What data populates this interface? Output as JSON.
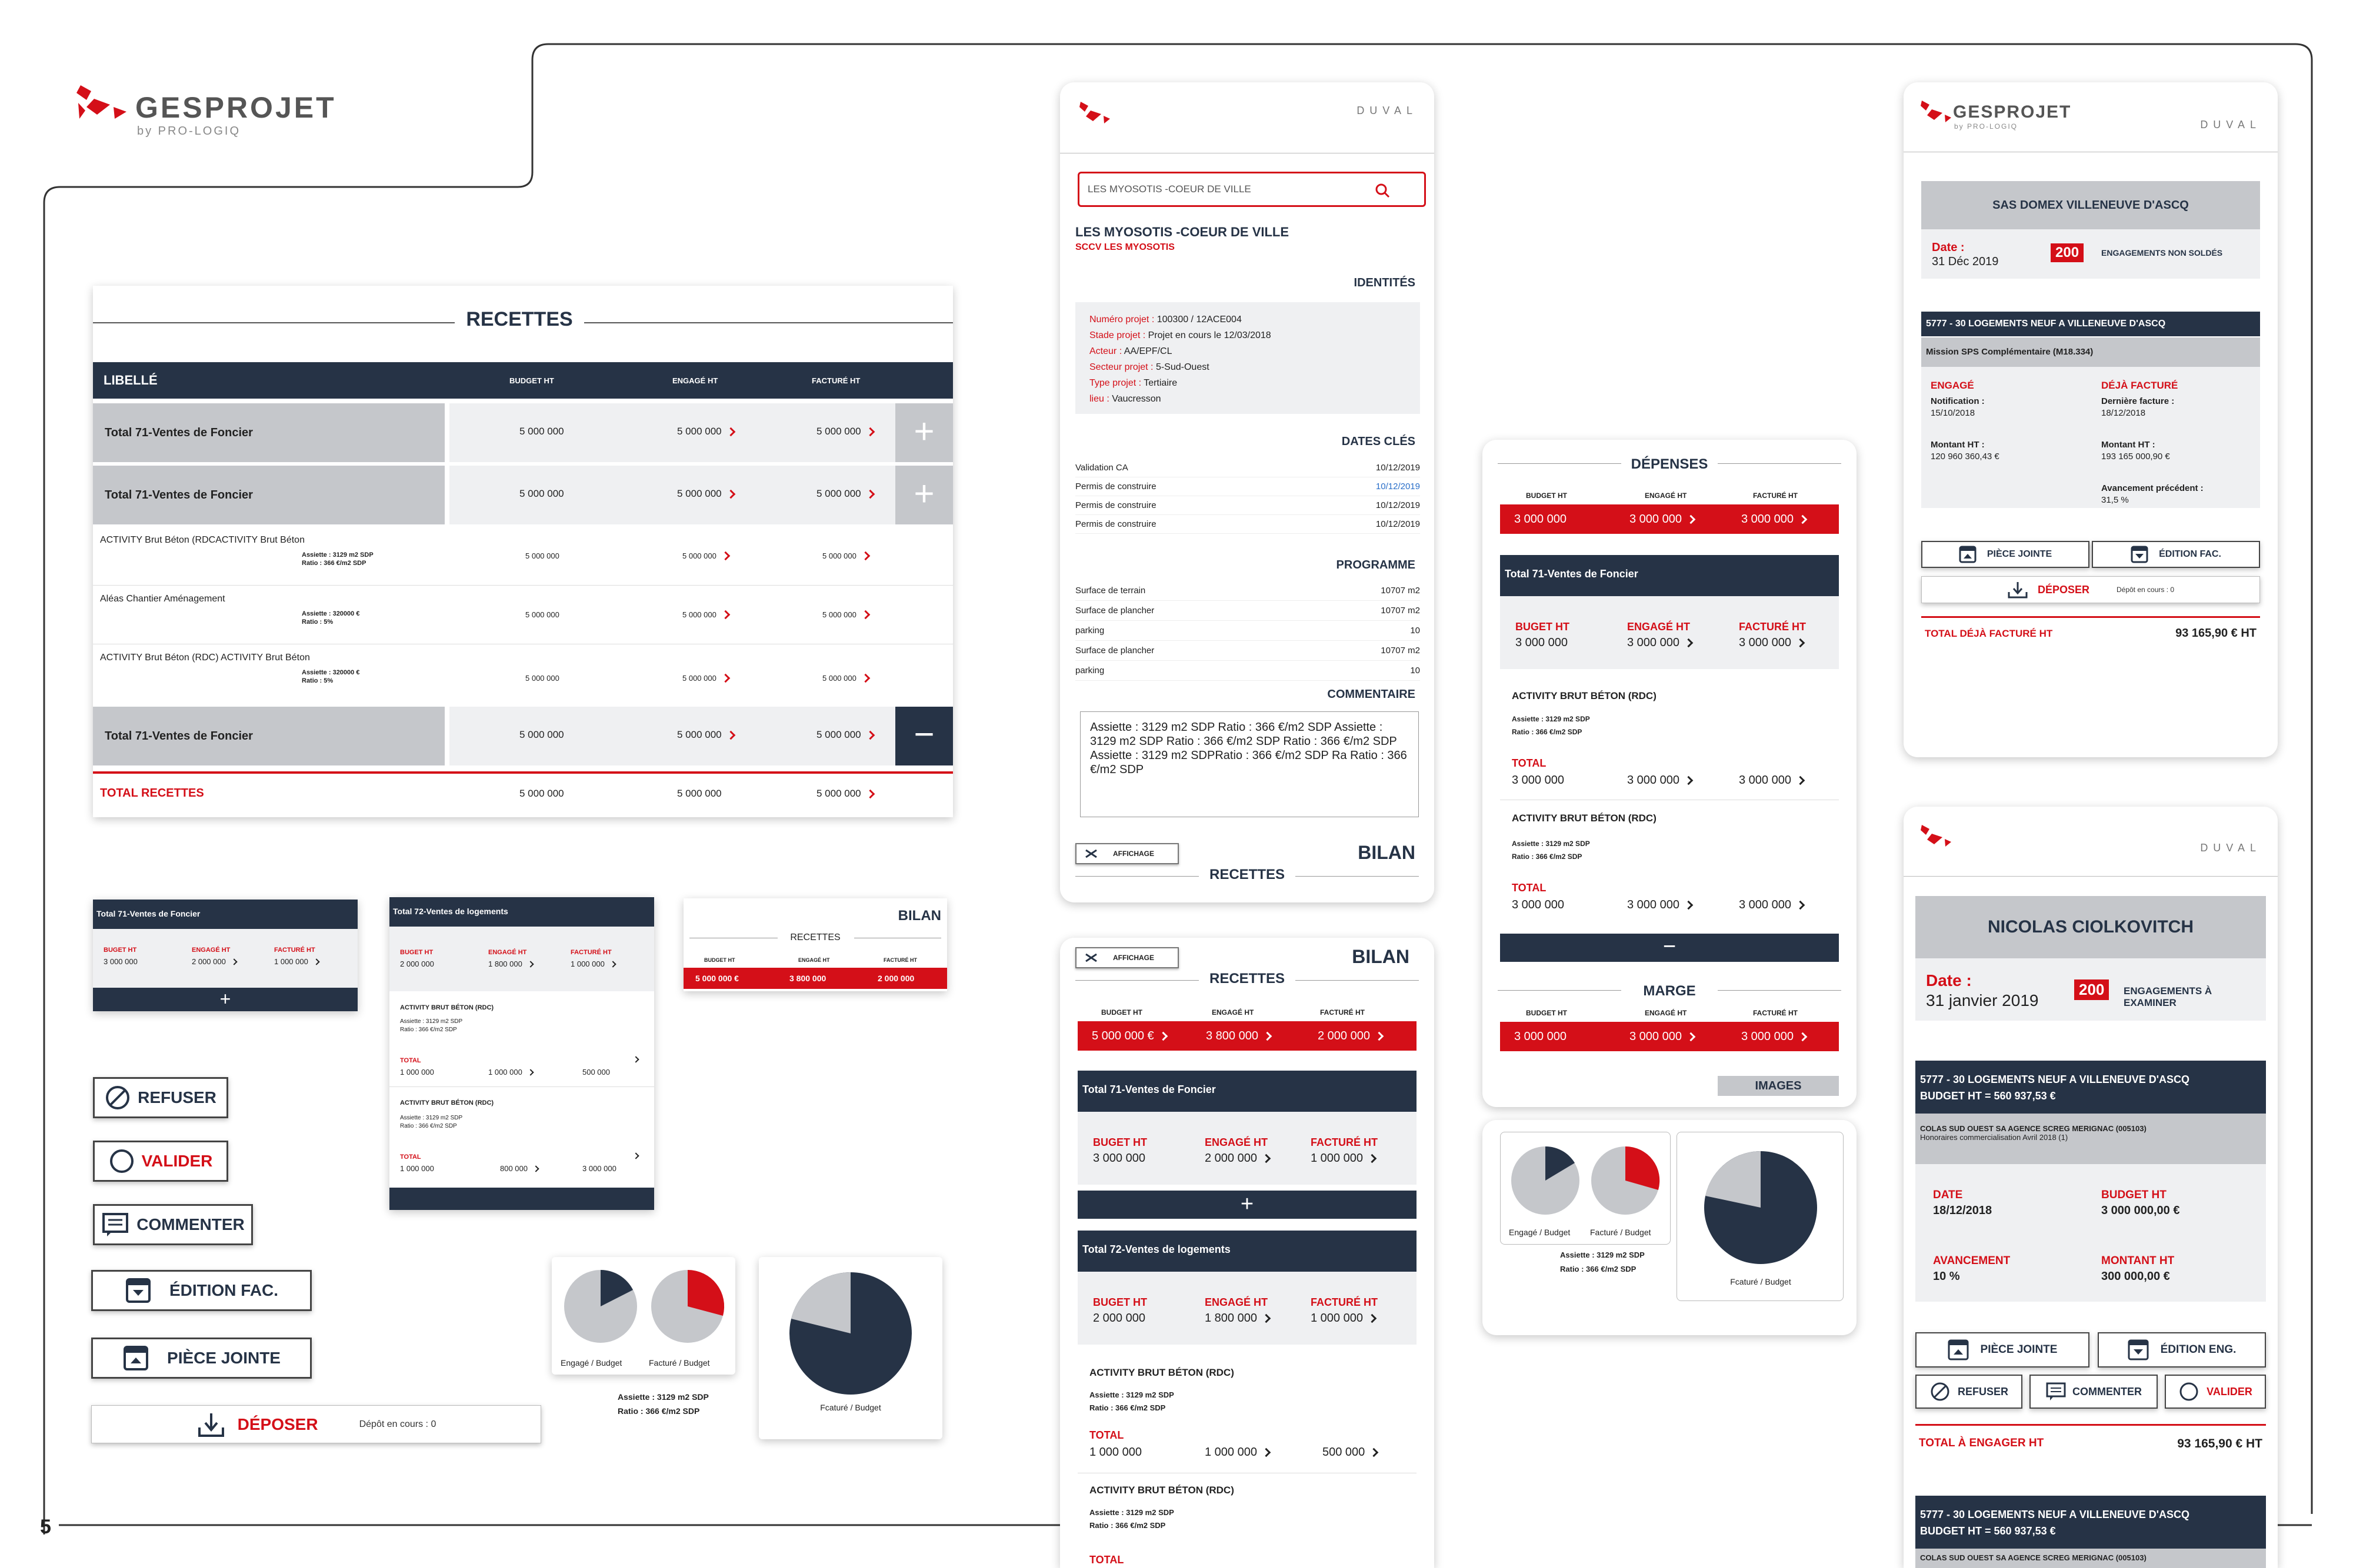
{
  "brand": {
    "name": "GESPROJET",
    "sub": "by PRO-LOGIQ",
    "client": "DUVAL"
  },
  "page_number": "5",
  "colors": {
    "navy": "#263346",
    "red": "#d40f18",
    "grey": "#c5c7cb"
  },
  "recettes_table": {
    "title": "RECETTES",
    "headers": {
      "libelle": "LIBELLÉ",
      "budget": "BUDGET HT",
      "engage": "ENGAGÉ HT",
      "facture": "FACTURÉ HT"
    },
    "group1": {
      "label": "Total 71-Ventes de Foncier",
      "budget": "5 000 000",
      "engage": "5 000 000",
      "facture": "5 000 000"
    },
    "group2": {
      "label": "Total 71-Ventes de Foncier",
      "budget": "5 000 000",
      "engage": "5 000 000",
      "facture": "5 000 000"
    },
    "detail1": {
      "label": "ACTIVITY Brut Béton (RDCACTIVITY Brut Béton",
      "assiette": "Assiette : 3129 m2 SDP",
      "ratio": "Ratio : 366 €/m2 SDP",
      "budget": "5 000 000",
      "engage": "5 000 000",
      "facture": "5 000 000"
    },
    "detail2": {
      "label": "Aléas Chantier Aménagement",
      "assiette": "Assiette : 320000 €",
      "ratio": "Ratio : 5%",
      "budget": "5 000 000",
      "engage": "5 000 000",
      "facture": "5 000 000"
    },
    "detail3": {
      "label": "ACTIVITY Brut Béton (RDC) ACTIVITY Brut Béton",
      "assiette": "Assiette : 320000 €",
      "ratio": "Ratio : 5%",
      "budget": "5 000 000",
      "engage": "5 000 000",
      "facture": "5 000 000"
    },
    "group3": {
      "label": "Total 71-Ventes de Foncier",
      "budget": "5 000 000",
      "engage": "5 000 000",
      "facture": "5 000 000"
    },
    "total": {
      "label": "TOTAL RECETTES",
      "budget": "5 000 000",
      "engage": "5 000 000",
      "facture": "5 000 000"
    }
  },
  "mini71": {
    "title": "Total 71-Ventes de Foncier",
    "l1": "BUGET HT",
    "l2": "ENGAGÉ HT",
    "l3": "FACTURÉ HT",
    "v1": "3 000 000",
    "v2": "2 000 000",
    "v3": "1 000 000",
    "plus": "+"
  },
  "mini72": {
    "title": "Total 72-Ventes de logements",
    "l1": "BUGET HT",
    "l2": "ENGAGÉ HT",
    "l3": "FACTURÉ HT",
    "v1": "2 000 000",
    "v2": "1 800 000",
    "v3": "1 000 000",
    "a1": {
      "title": "ACTIVITY BRUT BÉTON (RDC)",
      "assiette": "Assiette : 3129 m2 SDP",
      "ratio": "Ratio : 366 €/m2 SDP",
      "total": "TOTAL",
      "v1": "1 000 000",
      "v2": "1 000 000",
      "v3": "500 000"
    },
    "a2": {
      "title": "ACTIVITY BRUT BÉTON (RDC)",
      "assiette": "Assiette : 3129 m2 SDP",
      "ratio": "Ratio : 366 €/m2 SDP",
      "total": "TOTAL",
      "v1": "1 000 000",
      "v2": "800 000",
      "v3": "3 000 000"
    }
  },
  "minibilan": {
    "title": "BILAN",
    "sub": "RECETTES",
    "l1": "BUDGET HT",
    "l2": "ENGAGÉ HT",
    "l3": "FACTURÉ HT",
    "v1": "5 000 000 €",
    "v2": "3 800 000",
    "v3": "2 000 000"
  },
  "buttons": {
    "refuser": "REFUSER",
    "valider": "VALIDER",
    "commenter": "COMMENTER",
    "edition": "ÉDITION FAC.",
    "piece": "PIÈCE JOINTE",
    "deposer": "DÉPOSER",
    "depot": "Dépôt en cours : 0"
  },
  "pies": {
    "l1": "Engagé / Budget",
    "l2": "Facturé / Budget",
    "l3": "Fcaturé / Budget",
    "assiette": "Assiette : 3129 m2 SDP",
    "ratio": "Ratio : 366 €/m2 SDP"
  },
  "phone1": {
    "search": "LES MYOSOTIS -COEUR DE VILLE",
    "title": "LES MYOSOTIS -COEUR DE VILLE",
    "subtitle": "SCCV LES MYOSOTIS",
    "identites_h": "IDENTITÉS",
    "identites": [
      [
        "Numéro projet :",
        "100300 / 12ACE004"
      ],
      [
        "Stade projet :",
        "Projet en cours le 12/03/2018"
      ],
      [
        "Acteur :",
        "AA/EPF/CL"
      ],
      [
        "Secteur projet :",
        "5-Sud-Ouest"
      ],
      [
        "Type projet :",
        "Tertiaire"
      ],
      [
        "lieu :",
        "Vaucresson"
      ]
    ],
    "dates_h": "DATES CLÉS",
    "dates": [
      [
        "Validation CA",
        "10/12/2019"
      ],
      [
        "Permis de construire",
        "10/12/2019"
      ],
      [
        "Permis de construire",
        "10/12/2019"
      ],
      [
        "Permis de construire",
        "10/12/2019"
      ]
    ],
    "prog_h": "PROGRAMME",
    "prog": [
      [
        "Surface de terrain",
        "10707 m2"
      ],
      [
        "Surface de plancher",
        "10707 m2"
      ],
      [
        "parking",
        "10"
      ],
      [
        "Surface de plancher",
        "10707 m2"
      ],
      [
        "parking",
        "10"
      ]
    ],
    "comment_h": "COMMENTAIRE",
    "comment": "Assiette : 3129 m2 SDP Ratio : 366 €/m2 SDP Assiette : 3129 m2 SDP Ratio : 366 €/m2 SDP Ratio : 366 €/m2 SDP Assiette : 3129 m2 SDPRatio : 366 €/m2 SDP Ra Ratio : 366 €/m2 SDP",
    "affichage": "AFFICHAGE",
    "bilan": "BILAN",
    "recettes": "RECETTES"
  },
  "phone2": {
    "affichage": "AFFICHAGE",
    "bilan": "BILAN",
    "recettes": "RECETTES",
    "l1": "BUDGET HT",
    "l2": "ENGAGÉ HT",
    "l3": "FACTURÉ HT",
    "v1": "5 000 000 €",
    "v2": "3 800 000",
    "v3": "2 000 000",
    "g1": {
      "title": "Total 71-Ventes de Foncier",
      "l1": "BUGET HT",
      "l2": "ENGAGÉ HT",
      "l3": "FACTURÉ HT",
      "v1": "3 000 000",
      "v2": "2 000 000",
      "v3": "1 000 000"
    },
    "plus": "+",
    "g2": {
      "title": "Total 72-Ventes de logements",
      "l1": "BUGET HT",
      "l2": "ENGAGÉ HT",
      "l3": "FACTURÉ HT",
      "v1": "2 000 000",
      "v2": "1 800 000",
      "v3": "1 000 000"
    },
    "a1": {
      "title": "ACTIVITY BRUT BÉTON (RDC)",
      "assiette": "Assiette : 3129 m2 SDP",
      "ratio": "Ratio : 366 €/m2 SDP",
      "total": "TOTAL",
      "v1": "1 000 000",
      "v2": "1 000 000",
      "v3": "500 000"
    },
    "a2": {
      "title": "ACTIVITY BRUT BÉTON (RDC)",
      "assiette": "Assiette : 3129 m2 SDP",
      "ratio": "Ratio : 366 €/m2 SDP",
      "total": "TOTAL"
    }
  },
  "phone3": {
    "depenses": "DÉPENSES",
    "l1": "BUDGET HT",
    "l2": "ENGAGÉ HT",
    "l3": "FACTURÉ HT",
    "v1": "3 000 000",
    "v2": "3 000 000",
    "v3": "3 000 000",
    "g1": {
      "title": "Total 71-Ventes de Foncier",
      "l1": "BUGET HT",
      "l2": "ENGAGÉ HT",
      "l3": "FACTURÉ HT",
      "v1": "3 000 000",
      "v2": "3 000 000",
      "v3": "3 000 000"
    },
    "a1": {
      "title": "ACTIVITY BRUT BÉTON (RDC)",
      "assiette": "Assiette : 3129 m2 SDP",
      "ratio": "Ratio : 366 €/m2 SDP",
      "total": "TOTAL",
      "v1": "3 000 000",
      "v2": "3 000 000",
      "v3": "3 000 000"
    },
    "a2": {
      "title": "ACTIVITY BRUT BÉTON (RDC)",
      "assiette": "Assiette : 3129 m2 SDP",
      "ratio": "Ratio : 366 €/m2 SDP",
      "total": "TOTAL",
      "v1": "3 000 000",
      "v2": "3 000 000",
      "v3": "3 000 000"
    },
    "minus": "−",
    "marge": "MARGE",
    "m1": "3 000 000",
    "m2": "3 000 000",
    "m3": "3 000 000",
    "images": "IMAGES"
  },
  "phone4": {
    "company": "SAS DOMEX VILLENEUVE D'ASCQ",
    "date_l": "Date :",
    "date": "31 Déc 2019",
    "count": "200",
    "count_l": "ENGAGEMENTS NON SOLDÉS",
    "project": "5777 - 30 LOGEMENTS NEUF A VILLENEUVE D'ASCQ",
    "mission": "Mission SPS Complémentaire (M18.334)",
    "engage_h": "ENGAGÉ",
    "deja_h": "DÉJÀ FACTURÉ",
    "notif_l": "Notification :",
    "notif": "15/10/2018",
    "derniere_l": "Dernière facture :",
    "derniere": "18/12/2018",
    "montant_l": "Montant HT :",
    "montant": "120 960 360,43 €",
    "montant2_l": "Montant HT :",
    "montant2": "193 165 000,90 €",
    "avanc_l": "Avancement précédent :",
    "avanc": "31,5 %",
    "piece": "PIÈCE JOINTE",
    "edition": "ÉDITION FAC.",
    "deposer": "DÉPOSER",
    "depot": "Dépôt en cours : 0",
    "total_l": "TOTAL DÉJÀ FACTURÉ HT",
    "total": "93 165,90 € HT"
  },
  "phone5": {
    "name": "NICOLAS CIOLKOVITCH",
    "date_l": "Date :",
    "date": "31 janvier 2019",
    "count": "200",
    "count_l": "ENGAGEMENTS À EXAMINER",
    "project": "5777 - 30 LOGEMENTS NEUF A VILLENEUVE D'ASCQ",
    "budget": "BUDGET HT = 560 937,53 €",
    "company": "COLAS SUD OUEST SA AGENCE  SCREG MERIGNAC (005103)",
    "desc": "Honoraires commercialisation Avril 2018 (1)",
    "date_h": "DATE",
    "date_v": "18/12/2018",
    "budget_h": "BUDGET HT",
    "budget_v": "3 000 000,00 €",
    "avanc_h": "AVANCEMENT",
    "avanc_v": "10 %",
    "montant_h": "MONTANT HT",
    "montant_v": "300 000,00 €",
    "piece": "PIÈCE JOINTE",
    "edition": "ÉDITION ENG.",
    "refuser": "REFUSER",
    "commenter": "COMMENTER",
    "valider": "VALIDER",
    "total_l": "TOTAL À ENGAGER HT",
    "total": "93 165,90 € HT",
    "project2": "5777 - 30 LOGEMENTS NEUF A VILLENEUVE D'ASCQ",
    "budget2": "BUDGET HT = 560 937,53 €",
    "company2": "COLAS SUD OUEST SA AGENCE  SCREG MERIGNAC (005103)"
  }
}
